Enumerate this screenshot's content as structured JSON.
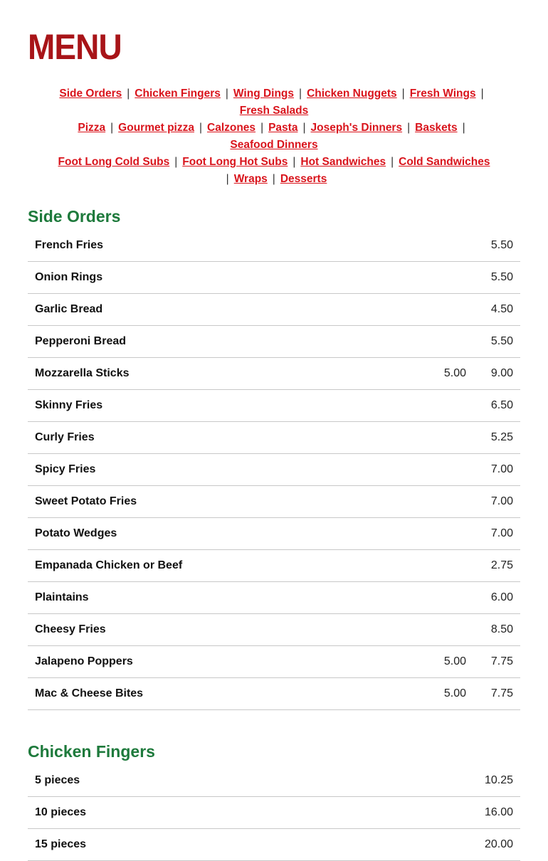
{
  "title": "MENU",
  "nav": [
    {
      "items": [
        "Side Orders",
        "Chicken Fingers",
        "Wing Dings",
        "Chicken Nuggets",
        "Fresh Wings"
      ],
      "trail": true
    },
    {
      "items": [
        "Fresh Salads"
      ],
      "trail": false
    },
    {
      "items": [
        "Pizza",
        "Gourmet pizza",
        "Calzones",
        "Pasta",
        "Joseph's Dinners",
        "Baskets"
      ],
      "trail": true
    },
    {
      "items": [
        "Seafood Dinners"
      ],
      "trail": false
    },
    {
      "items": [
        "Foot Long Cold Subs",
        "Foot Long Hot Subs",
        "Hot Sandwiches",
        "Cold Sandwiches"
      ],
      "trail": false
    },
    {
      "items": [
        "Wraps",
        "Desserts"
      ],
      "lead": true
    }
  ],
  "separator": "|",
  "sections": [
    {
      "title": "Side Orders",
      "items": [
        {
          "name": "French Fries",
          "prices": [
            "5.50"
          ]
        },
        {
          "name": "Onion Rings",
          "prices": [
            "5.50"
          ]
        },
        {
          "name": "Garlic Bread",
          "prices": [
            "4.50"
          ]
        },
        {
          "name": "Pepperoni Bread",
          "prices": [
            "5.50"
          ]
        },
        {
          "name": "Mozzarella Sticks",
          "prices": [
            "5.00",
            "9.00"
          ]
        },
        {
          "name": "Skinny Fries",
          "prices": [
            "6.50"
          ]
        },
        {
          "name": "Curly Fries",
          "prices": [
            "5.25"
          ]
        },
        {
          "name": "Spicy Fries",
          "prices": [
            "7.00"
          ]
        },
        {
          "name": "Sweet Potato Fries",
          "prices": [
            "7.00"
          ]
        },
        {
          "name": "Potato Wedges",
          "prices": [
            "7.00"
          ]
        },
        {
          "name": "Empanada Chicken or Beef",
          "prices": [
            "2.75"
          ]
        },
        {
          "name": "Plaintains",
          "prices": [
            "6.00"
          ]
        },
        {
          "name": "Cheesy Fries",
          "prices": [
            "8.50"
          ]
        },
        {
          "name": "Jalapeno Poppers",
          "prices": [
            "5.00",
            "7.75"
          ]
        },
        {
          "name": "Mac & Cheese Bites",
          "prices": [
            "5.00",
            "7.75"
          ]
        }
      ]
    },
    {
      "title": "Chicken Fingers",
      "items": [
        {
          "name": "5 pieces",
          "prices": [
            "10.25"
          ]
        },
        {
          "name": "10 pieces",
          "prices": [
            "16.00"
          ]
        },
        {
          "name": "15 pieces",
          "prices": [
            "20.00"
          ]
        }
      ]
    }
  ]
}
